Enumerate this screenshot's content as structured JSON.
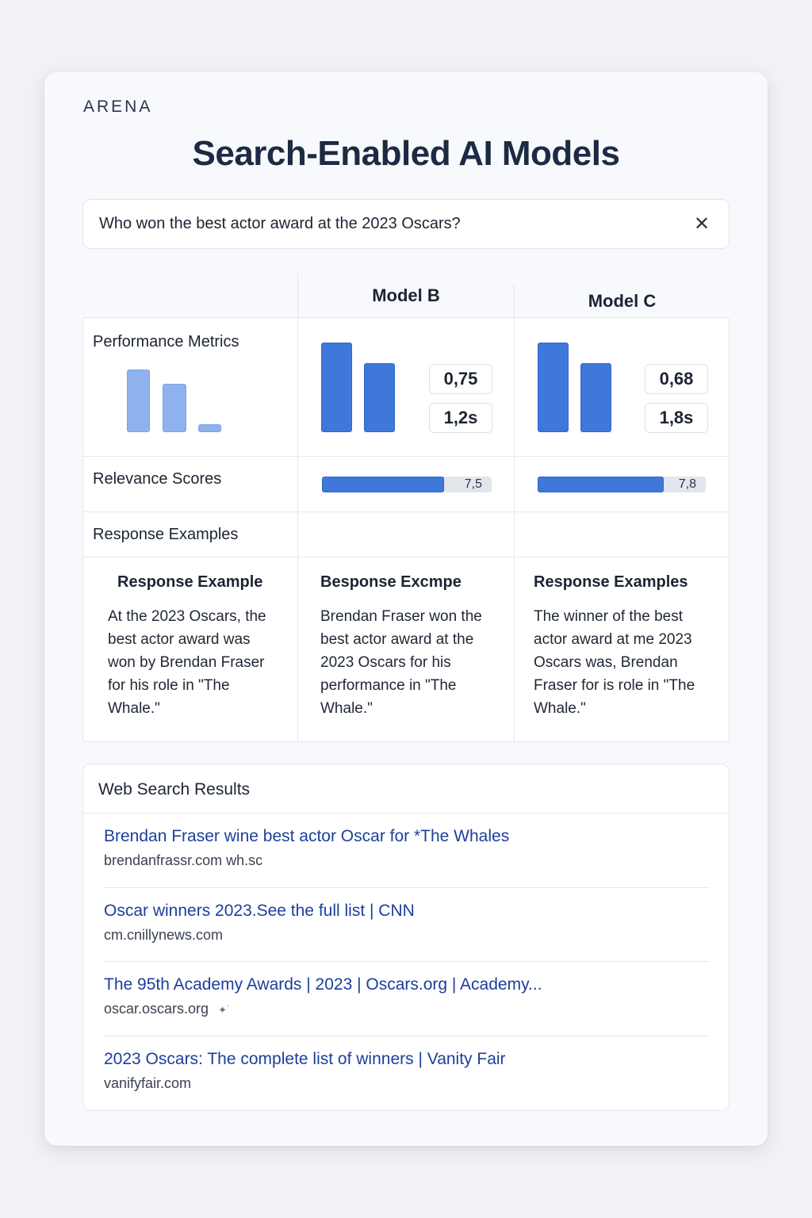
{
  "brand": "ARENA",
  "title": "Search-Enabled AI Models",
  "search": {
    "value": "Who won the best actor award at the 2023 Oscars?",
    "close_label": "✕"
  },
  "columns": {
    "model_b": "Model B",
    "model_c": "Model C"
  },
  "rows": {
    "performance": "Performance Metrics",
    "relevance": "Relevance Scores",
    "examples": "Response Examples"
  },
  "metrics": {
    "model_b": {
      "score": "0,75",
      "latency": "1,2s"
    },
    "model_c": {
      "score": "0,68",
      "latency": "1,8s"
    }
  },
  "relevance": {
    "model_b": {
      "label": "7,5",
      "value": 7.5
    },
    "model_c": {
      "label": "7,8",
      "value": 7.8
    },
    "max": 10
  },
  "examples": {
    "col_a": {
      "heading": "Response Example",
      "text": "At the 2023 Oscars, the best actor award was won by Brendan Fraser for his role in \"The Whale.\""
    },
    "col_b": {
      "heading": "Besponse Excmpe",
      "text": "Brendan Fraser won the best actor award at the 2023 Oscars for his performance in \"The Whale.\""
    },
    "col_c": {
      "heading": "Response Examples",
      "text": "The winner of the best actor award at me 2023 Oscars was, Brendan Fraser for  is role in \"The Whale.\""
    }
  },
  "web": {
    "heading": "Web Search Results",
    "results": [
      {
        "title": "Brendan Fraser wine best actor Oscar for *The Whales",
        "url": "brendanfrassr.com  wh.sc"
      },
      {
        "title": "Oscar winners 2023.See the full list | CNN",
        "url": "cm.cnillynews.com"
      },
      {
        "title": "The 95th Academy Awards | 2023 | Oscars.org  | Academy...",
        "url": "oscar.oscars.org"
      },
      {
        "title": "2023 Oscars: The complete list of winners | Vanity Fair",
        "url": "vanifyfair.com"
      }
    ]
  },
  "colors": {
    "accent": "#3f78db",
    "accent_light": "#8fb1ee",
    "link": "#1c3f9c",
    "title": "#1d2a44"
  }
}
